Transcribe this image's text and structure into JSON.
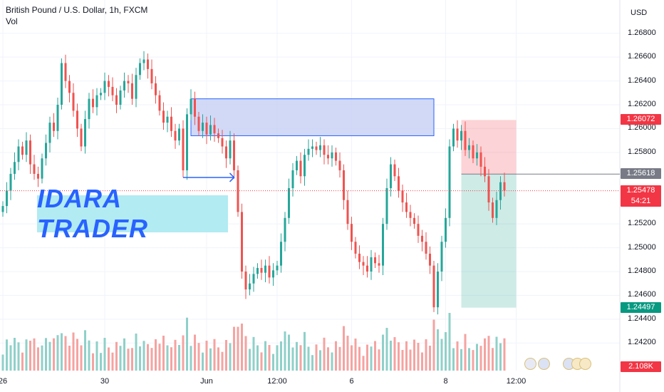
{
  "header": {
    "symbol_line": "British Pound / U.S. Dollar, 1h, FXCM",
    "vol_label": "Vol"
  },
  "watermark": "IDARA TRADER",
  "currency": "USD",
  "y_axis": {
    "ticks": [
      "1.26800",
      "1.26600",
      "1.26400",
      "1.26200",
      "1.26000",
      "1.25800",
      "1.25200",
      "1.25000",
      "1.24800",
      "1.24600",
      "1.24400",
      "1.24200"
    ],
    "min": 1.241,
    "max": 1.269
  },
  "x_axis": {
    "labels": [
      {
        "text": "26",
        "at": 0
      },
      {
        "text": "30",
        "at": 26
      },
      {
        "text": "Jun",
        "at": 52
      },
      {
        "text": "12:00",
        "at": 70
      },
      {
        "text": "6",
        "at": 89
      },
      {
        "text": "8",
        "at": 113
      },
      {
        "text": "12:00",
        "at": 131
      }
    ]
  },
  "price_tags": {
    "stop": {
      "value": "1.26072",
      "color": "#f23645"
    },
    "entry": {
      "value": "1.25618",
      "color": "#787b86"
    },
    "current": {
      "value": "1.25478",
      "countdown": "54:21",
      "color": "#f23645"
    },
    "target": {
      "value": "1.24497",
      "color": "#089981"
    },
    "volume": {
      "value": "2.108K",
      "color": "#f23645"
    }
  },
  "annotations": {
    "zone": {
      "from_index": 48,
      "to_index": 110,
      "low": 1.2594,
      "high": 1.2625
    },
    "arrow": {
      "from_index": 46,
      "to_index": 59,
      "price": 1.2559
    },
    "position": {
      "from_index": 117,
      "to_index": 131,
      "entry": 1.25618,
      "stop": 1.26072,
      "target": 1.24497
    }
  },
  "colors": {
    "up": "#26a69a",
    "down": "#ef5350",
    "vol_up": "#8fd0c9",
    "vol_down": "#f5a3a1",
    "zone_fill": "#c5cff5",
    "zone_border": "#2962ff",
    "grid": "#f0f3fa"
  },
  "chart_data": {
    "type": "candlestick",
    "title": "British Pound / U.S. Dollar, 1h, FXCM",
    "ylabel": "USD",
    "ylim": [
      1.241,
      1.269
    ],
    "x_labels": [
      "26",
      "30",
      "Jun",
      "12:00",
      "6",
      "8",
      "12:00"
    ],
    "closes": [
      1.2535,
      1.2548,
      1.2562,
      1.2572,
      1.2585,
      1.2578,
      1.259,
      1.257,
      1.2562,
      1.2558,
      1.2575,
      1.2588,
      1.2605,
      1.2598,
      1.262,
      1.2655,
      1.264,
      1.263,
      1.2615,
      1.26,
      1.2585,
      1.2608,
      1.2625,
      1.2618,
      1.2628,
      1.263,
      1.264,
      1.2635,
      1.2628,
      1.262,
      1.2632,
      1.264,
      1.2638,
      1.2625,
      1.2645,
      1.2655,
      1.2658,
      1.265,
      1.2638,
      1.2628,
      1.2615,
      1.2605,
      1.261,
      1.2598,
      1.259,
      1.26,
      1.2565,
      1.2612,
      1.2625,
      1.261,
      1.2598,
      1.2605,
      1.2595,
      1.2603,
      1.2596,
      1.2592,
      1.2585,
      1.2575,
      1.259,
      1.2565,
      1.253,
      1.248,
      1.2465,
      1.247,
      1.2478,
      1.2483,
      1.2479,
      1.2485,
      1.2475,
      1.2481,
      1.2485,
      1.2505,
      1.2525,
      1.255,
      1.2565,
      1.2573,
      1.256,
      1.2578,
      1.2583,
      1.2585,
      1.2582,
      1.2586,
      1.2578,
      1.2575,
      1.258,
      1.2573,
      1.2565,
      1.254,
      1.252,
      1.2505,
      1.2495,
      1.2488,
      1.2485,
      1.248,
      1.2492,
      1.2487,
      1.2485,
      1.252,
      1.255,
      1.257,
      1.256,
      1.2548,
      1.2538,
      1.253,
      1.2525,
      1.252,
      1.251,
      1.2505,
      1.2495,
      1.2485,
      1.245,
      1.248,
      1.2505,
      1.2525,
      1.2585,
      1.26,
      1.259,
      1.2598,
      1.2582,
      1.2586,
      1.2575,
      1.258,
      1.2568,
      1.256,
      1.2538,
      1.2525,
      1.254,
      1.2555,
      1.2548
    ],
    "volume_last": "2.108K"
  }
}
